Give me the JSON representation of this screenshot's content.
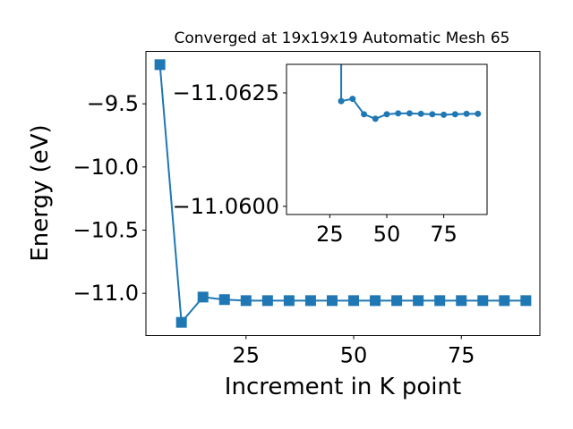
{
  "chart_data": [
    {
      "type": "line",
      "title": "Converged at 19x19x19 Automatic Mesh 65",
      "xlabel": "Increment in K point",
      "ylabel": "Energy (eV)",
      "x": [
        5,
        10,
        15,
        20,
        25,
        30,
        35,
        40,
        45,
        50,
        55,
        60,
        65,
        70,
        75,
        80,
        85,
        90
      ],
      "series": [
        {
          "marker": "square",
          "color": "#1f77b4",
          "values": [
            -9.19,
            -11.23,
            -11.03,
            -11.05,
            -11.058,
            -11.058,
            -11.058,
            -11.058,
            -11.058,
            -11.058,
            -11.058,
            -11.058,
            -11.058,
            -11.058,
            -11.058,
            -11.058,
            -11.058,
            -11.058
          ]
        }
      ],
      "xlim": [
        1.75,
        93.25
      ],
      "ylim": [
        -11.335,
        -9.085
      ],
      "xticks": [
        25,
        50,
        75
      ],
      "xtick_labels": [
        "25",
        "50",
        "75"
      ],
      "yticks": [
        -9.5,
        -10.0,
        -10.5,
        -11.0
      ],
      "ytick_labels": [
        "−9.5",
        "−10.0",
        "−10.5",
        "−11.0"
      ],
      "grid": false
    },
    {
      "type": "line",
      "inset": true,
      "x": [
        30,
        35,
        40,
        45,
        50,
        55,
        60,
        65,
        70,
        75,
        80,
        85,
        90
      ],
      "series": [
        {
          "marker": "circle",
          "color": "#1f77b4",
          "values": [
            -11.06232,
            -11.06237,
            -11.06203,
            -11.06193,
            -11.06203,
            -11.06205,
            -11.06205,
            -11.06204,
            -11.06203,
            -11.06202,
            -11.06203,
            -11.06204,
            -11.06204
          ]
        }
      ],
      "xlim": [
        6,
        94
      ],
      "ylim": [
        -11.05982,
        -11.06313
      ],
      "xticks": [
        25,
        50,
        75
      ],
      "xtick_labels": [
        "25",
        "50",
        "75"
      ],
      "yticks": [
        -11.0625,
        -11.06
      ],
      "ytick_labels": [
        "−11.0625",
        "−11.0600"
      ],
      "grid": false
    }
  ]
}
